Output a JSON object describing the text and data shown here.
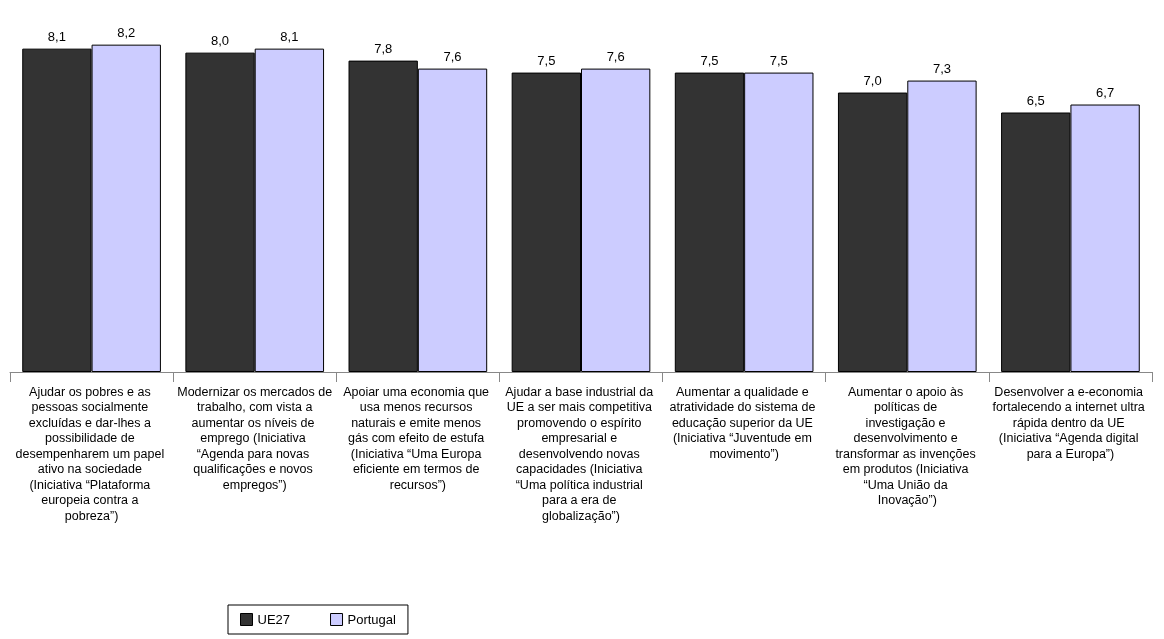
{
  "chart_data": {
    "type": "bar",
    "categories": [
      "Ajudar os pobres e as pessoas socialmente excluídas e dar-lhes a possibilidade de desempenharem um papel ativo na sociedade (Iniciativa “Plataforma europeia contra a pobreza”)",
      "Modernizar os mercados de trabalho, com vista a aumentar os níveis de emprego (Iniciativa “Agenda para novas qualificações e novos empregos”)",
      "Apoiar uma economia que usa menos recursos naturais e emite menos gás com efeito de estufa (Iniciativa “Uma Europa eficiente em termos de recursos”)",
      "Ajudar a base industrial da UE a ser mais competitiva promovendo o espírito empresarial e desenvolvendo novas capacidades (Iniciativa “Uma política industrial para a era de globalização”)",
      "Aumentar a qualidade e atratividade do sistema de educação superior da UE (Iniciativa “Juventude em movimento”)",
      "Aumentar o apoio às políticas de investigação e desenvolvimento e transformar as invenções em produtos (Iniciativa “Uma União da Inovação”)",
      "Desenvolver a e-economia fortalecendo a internet ultra rápida dentro da UE (Iniciativa “Agenda digital para a Europa”)"
    ],
    "series": [
      {
        "name": "UE27",
        "color": "#333333",
        "values": [
          8.1,
          8.0,
          7.8,
          7.5,
          7.5,
          7.0,
          6.5
        ],
        "value_labels": [
          "8,1",
          "8,0",
          "7,8",
          "7,5",
          "7,5",
          "7,0",
          "6,5"
        ]
      },
      {
        "name": "Portugal",
        "color": "#ccccff",
        "values": [
          8.2,
          8.1,
          7.6,
          7.6,
          7.5,
          7.3,
          6.7
        ],
        "value_labels": [
          "8,2",
          "8,1",
          "7,6",
          "7,6",
          "7,5",
          "7,3",
          "6,7"
        ]
      }
    ],
    "legend": "bottom left",
    "tick_labels": "x"
  }
}
